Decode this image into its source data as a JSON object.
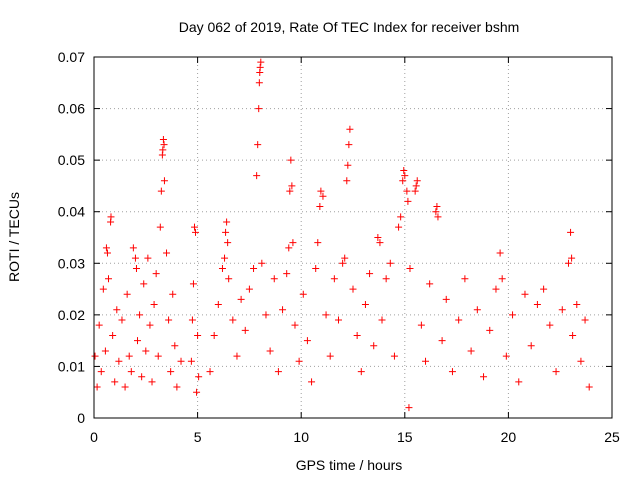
{
  "chart_data": {
    "type": "scatter",
    "title": "Day 062 of 2019, Rate Of TEC Index for receiver bshm",
    "xlabel": "GPS time / hours",
    "ylabel": "ROTI / TECUs",
    "xlim": [
      0,
      25
    ],
    "ylim": [
      0,
      0.07
    ],
    "x_ticks": [
      0,
      5,
      10,
      15,
      20,
      25
    ],
    "x_tick_labels": [
      "0",
      "5",
      "10",
      "15",
      "20",
      "25"
    ],
    "y_ticks": [
      0,
      0.01,
      0.02,
      0.03,
      0.04,
      0.05,
      0.06,
      0.07
    ],
    "y_tick_labels": [
      "0",
      "0.01",
      "0.02",
      "0.03",
      "0.04",
      "0.05",
      "0.06",
      "0.07"
    ],
    "grid": true,
    "marker": "+",
    "marker_color": "#ff0000",
    "series": [
      {
        "name": "ROTI",
        "points": [
          [
            0.05,
            0.012
          ],
          [
            0.15,
            0.006
          ],
          [
            0.25,
            0.018
          ],
          [
            0.35,
            0.009
          ],
          [
            0.45,
            0.025
          ],
          [
            0.55,
            0.013
          ],
          [
            0.6,
            0.033
          ],
          [
            0.65,
            0.032
          ],
          [
            0.7,
            0.027
          ],
          [
            0.8,
            0.038
          ],
          [
            0.82,
            0.039
          ],
          [
            0.9,
            0.016
          ],
          [
            1.0,
            0.007
          ],
          [
            1.1,
            0.021
          ],
          [
            1.2,
            0.011
          ],
          [
            1.35,
            0.019
          ],
          [
            1.5,
            0.006
          ],
          [
            1.6,
            0.024
          ],
          [
            1.7,
            0.012
          ],
          [
            1.8,
            0.009
          ],
          [
            1.9,
            0.033
          ],
          [
            2.0,
            0.031
          ],
          [
            2.05,
            0.029
          ],
          [
            2.1,
            0.015
          ],
          [
            2.2,
            0.02
          ],
          [
            2.3,
            0.008
          ],
          [
            2.4,
            0.026
          ],
          [
            2.5,
            0.013
          ],
          [
            2.6,
            0.031
          ],
          [
            2.7,
            0.018
          ],
          [
            2.8,
            0.007
          ],
          [
            2.9,
            0.022
          ],
          [
            3.0,
            0.028
          ],
          [
            3.1,
            0.012
          ],
          [
            3.2,
            0.037
          ],
          [
            3.25,
            0.044
          ],
          [
            3.3,
            0.051
          ],
          [
            3.32,
            0.052
          ],
          [
            3.35,
            0.054
          ],
          [
            3.38,
            0.053
          ],
          [
            3.4,
            0.046
          ],
          [
            3.5,
            0.032
          ],
          [
            3.6,
            0.019
          ],
          [
            3.7,
            0.009
          ],
          [
            3.8,
            0.024
          ],
          [
            3.9,
            0.014
          ],
          [
            4.0,
            0.006
          ],
          [
            4.2,
            0.011
          ],
          [
            4.7,
            0.011
          ],
          [
            4.75,
            0.019
          ],
          [
            4.8,
            0.026
          ],
          [
            4.85,
            0.037
          ],
          [
            4.9,
            0.036
          ],
          [
            4.95,
            0.005
          ],
          [
            5.0,
            0.016
          ],
          [
            5.05,
            0.008
          ],
          [
            5.6,
            0.009
          ],
          [
            5.8,
            0.016
          ],
          [
            6.0,
            0.022
          ],
          [
            6.2,
            0.029
          ],
          [
            6.3,
            0.031
          ],
          [
            6.35,
            0.036
          ],
          [
            6.4,
            0.038
          ],
          [
            6.45,
            0.034
          ],
          [
            6.5,
            0.027
          ],
          [
            6.7,
            0.019
          ],
          [
            6.9,
            0.012
          ],
          [
            7.1,
            0.023
          ],
          [
            7.3,
            0.017
          ],
          [
            7.5,
            0.025
          ],
          [
            7.7,
            0.029
          ],
          [
            7.85,
            0.047
          ],
          [
            7.9,
            0.053
          ],
          [
            7.95,
            0.06
          ],
          [
            7.98,
            0.065
          ],
          [
            8.0,
            0.067
          ],
          [
            8.02,
            0.068
          ],
          [
            8.05,
            0.069
          ],
          [
            8.1,
            0.03
          ],
          [
            8.3,
            0.02
          ],
          [
            8.5,
            0.013
          ],
          [
            8.7,
            0.027
          ],
          [
            8.9,
            0.009
          ],
          [
            9.1,
            0.021
          ],
          [
            9.3,
            0.028
          ],
          [
            9.4,
            0.033
          ],
          [
            9.45,
            0.044
          ],
          [
            9.5,
            0.05
          ],
          [
            9.55,
            0.045
          ],
          [
            9.6,
            0.034
          ],
          [
            9.7,
            0.018
          ],
          [
            9.9,
            0.011
          ],
          [
            10.1,
            0.024
          ],
          [
            10.3,
            0.015
          ],
          [
            10.5,
            0.007
          ],
          [
            10.7,
            0.029
          ],
          [
            10.8,
            0.034
          ],
          [
            10.9,
            0.041
          ],
          [
            10.95,
            0.044
          ],
          [
            11.05,
            0.043
          ],
          [
            11.2,
            0.02
          ],
          [
            11.4,
            0.012
          ],
          [
            11.6,
            0.027
          ],
          [
            11.8,
            0.019
          ],
          [
            12.0,
            0.03
          ],
          [
            12.1,
            0.031
          ],
          [
            12.2,
            0.046
          ],
          [
            12.25,
            0.049
          ],
          [
            12.3,
            0.053
          ],
          [
            12.35,
            0.056
          ],
          [
            12.5,
            0.025
          ],
          [
            12.7,
            0.016
          ],
          [
            12.9,
            0.009
          ],
          [
            13.1,
            0.022
          ],
          [
            13.3,
            0.028
          ],
          [
            13.5,
            0.014
          ],
          [
            13.7,
            0.035
          ],
          [
            13.8,
            0.034
          ],
          [
            13.9,
            0.019
          ],
          [
            14.1,
            0.027
          ],
          [
            14.3,
            0.03
          ],
          [
            14.5,
            0.012
          ],
          [
            14.7,
            0.037
          ],
          [
            14.8,
            0.039
          ],
          [
            14.9,
            0.046
          ],
          [
            14.95,
            0.048
          ],
          [
            15.0,
            0.047
          ],
          [
            15.1,
            0.044
          ],
          [
            15.15,
            0.042
          ],
          [
            15.2,
            0.002
          ],
          [
            15.25,
            0.029
          ],
          [
            15.5,
            0.044
          ],
          [
            15.55,
            0.045
          ],
          [
            15.6,
            0.046
          ],
          [
            15.8,
            0.018
          ],
          [
            16.0,
            0.011
          ],
          [
            16.2,
            0.026
          ],
          [
            16.5,
            0.04
          ],
          [
            16.55,
            0.041
          ],
          [
            16.6,
            0.039
          ],
          [
            16.8,
            0.015
          ],
          [
            17.0,
            0.023
          ],
          [
            17.3,
            0.009
          ],
          [
            17.6,
            0.019
          ],
          [
            17.9,
            0.027
          ],
          [
            18.2,
            0.013
          ],
          [
            18.5,
            0.021
          ],
          [
            18.8,
            0.008
          ],
          [
            19.1,
            0.017
          ],
          [
            19.4,
            0.025
          ],
          [
            19.6,
            0.032
          ],
          [
            19.7,
            0.027
          ],
          [
            19.9,
            0.012
          ],
          [
            20.2,
            0.02
          ],
          [
            20.5,
            0.007
          ],
          [
            20.8,
            0.024
          ],
          [
            21.1,
            0.014
          ],
          [
            21.4,
            0.022
          ],
          [
            21.7,
            0.025
          ],
          [
            22.0,
            0.018
          ],
          [
            22.3,
            0.009
          ],
          [
            22.6,
            0.021
          ],
          [
            22.9,
            0.03
          ],
          [
            23.0,
            0.036
          ],
          [
            23.05,
            0.031
          ],
          [
            23.1,
            0.016
          ],
          [
            23.3,
            0.022
          ],
          [
            23.5,
            0.011
          ],
          [
            23.7,
            0.019
          ],
          [
            23.9,
            0.006
          ]
        ]
      }
    ]
  }
}
